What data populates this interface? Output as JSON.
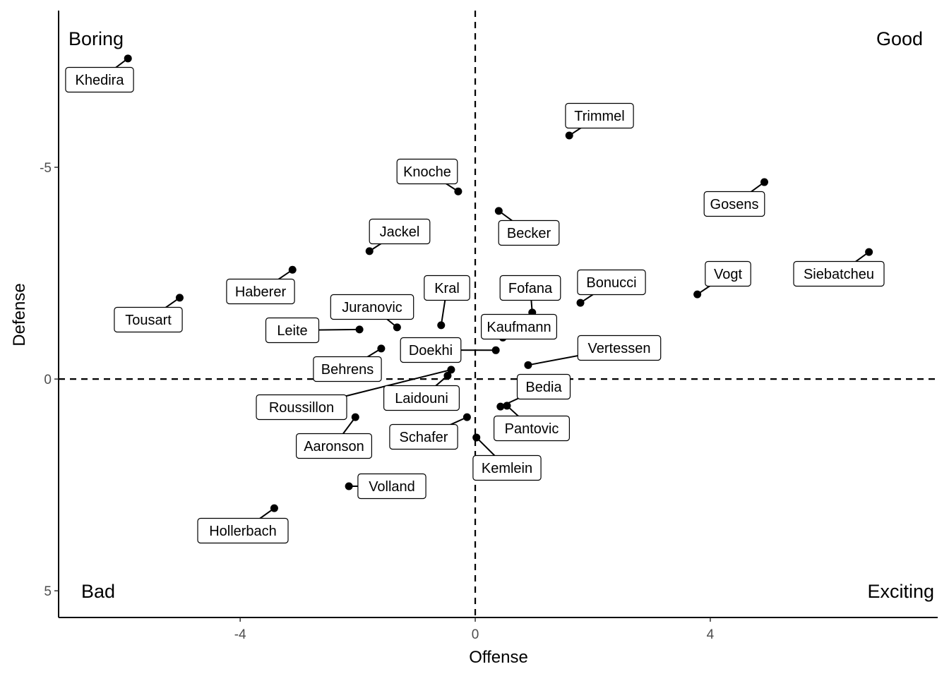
{
  "chart_data": {
    "type": "scatter",
    "title": "",
    "xlabel": "Offense",
    "ylabel": "Defense",
    "xlim": [
      -7.09,
      7.87
    ],
    "ylim": [
      -8.7,
      5.63
    ],
    "y_reversed": true,
    "grid": false,
    "x_ticks": [
      -4,
      0,
      4
    ],
    "y_ticks": [
      -5,
      0,
      5
    ],
    "reference_lines": {
      "x": 0,
      "y": 0
    },
    "quadrant_labels": {
      "top_left": "Boring",
      "top_right": "Good",
      "bottom_left": "Bad",
      "bottom_right": "Exciting"
    },
    "points": [
      {
        "name": "Khedira",
        "x": -5.91,
        "y": -7.57
      },
      {
        "name": "Trimmel",
        "x": 1.6,
        "y": -5.75
      },
      {
        "name": "Knoche",
        "x": -0.29,
        "y": -4.43
      },
      {
        "name": "Gosens",
        "x": 4.92,
        "y": -4.65
      },
      {
        "name": "Becker",
        "x": 0.4,
        "y": -3.97
      },
      {
        "name": "Jackel",
        "x": -1.8,
        "y": -3.02
      },
      {
        "name": "Siebatcheu",
        "x": 6.7,
        "y": -3.0
      },
      {
        "name": "Haberer",
        "x": -3.11,
        "y": -2.58
      },
      {
        "name": "Tousart",
        "x": -5.03,
        "y": -1.92
      },
      {
        "name": "Vogt",
        "x": 3.78,
        "y": -2.0
      },
      {
        "name": "Bonucci",
        "x": 1.79,
        "y": -1.8
      },
      {
        "name": "Fofana",
        "x": 0.97,
        "y": -1.57
      },
      {
        "name": "Kral",
        "x": -0.58,
        "y": -1.27
      },
      {
        "name": "Juranovic",
        "x": -1.33,
        "y": -1.22
      },
      {
        "name": "Leite",
        "x": -1.97,
        "y": -1.17
      },
      {
        "name": "Kaufmann",
        "x": 0.47,
        "y": -0.98
      },
      {
        "name": "Behrens",
        "x": -1.6,
        "y": -0.72
      },
      {
        "name": "Doekhi",
        "x": 0.35,
        "y": -0.68
      },
      {
        "name": "Vertessen",
        "x": 0.9,
        "y": -0.33
      },
      {
        "name": "Laidouni",
        "x": -0.47,
        "y": -0.08
      },
      {
        "name": "Roussillon",
        "x": -0.41,
        "y": -0.22
      },
      {
        "name": "Bedia",
        "x": 0.43,
        "y": 0.65
      },
      {
        "name": "Pantovic",
        "x": 0.54,
        "y": 0.63
      },
      {
        "name": "Schafer",
        "x": -0.14,
        "y": 0.9
      },
      {
        "name": "Kemlein",
        "x": 0.02,
        "y": 1.38
      },
      {
        "name": "Aaronson",
        "x": -2.04,
        "y": 0.9
      },
      {
        "name": "Volland",
        "x": -2.15,
        "y": 2.53
      },
      {
        "name": "Hollerbach",
        "x": -3.42,
        "y": 3.05
      }
    ]
  }
}
